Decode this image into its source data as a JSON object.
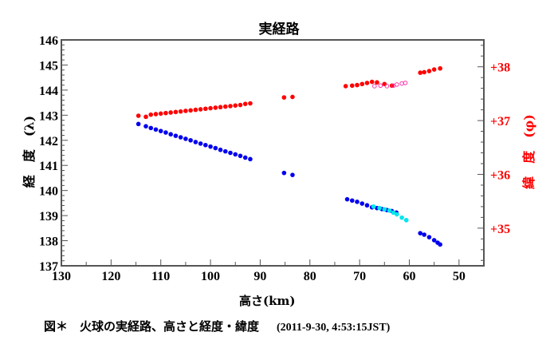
{
  "chart_data": {
    "type": "scatter",
    "title": "実経路",
    "xlabel": "高さ(km)",
    "ylabel_left": "経　度　(λ)",
    "ylabel_right": "緯　度　(φ)",
    "xlim": [
      130,
      45
    ],
    "ylim_left": [
      137,
      146
    ],
    "ylim_right": [
      34.3,
      38.5
    ],
    "x_ticks": [
      "130",
      "120",
      "110",
      "100",
      "90",
      "80",
      "70",
      "60",
      "50"
    ],
    "y_left_ticks": [
      "137",
      "138",
      "139",
      "140",
      "141",
      "142",
      "143",
      "144",
      "145",
      "146"
    ],
    "y_right_ticks": [
      "+35",
      "+36",
      "+37",
      "+38"
    ],
    "grid": false,
    "colors": {
      "longitude": "#0000ee",
      "longitude_alt": "#00e5ee",
      "latitude": "#ff0000",
      "latitude_alt": "#ff33aa",
      "right_axis": "#ff0000"
    },
    "series": [
      {
        "axis": "left",
        "color": "#0000ee",
        "marker": "filled",
        "points": [
          [
            114.5,
            142.65
          ],
          [
            113,
            142.56
          ],
          [
            112,
            142.49
          ],
          [
            111,
            142.43
          ],
          [
            110,
            142.37
          ],
          [
            109,
            142.31
          ],
          [
            108,
            142.24
          ],
          [
            107,
            142.18
          ],
          [
            106,
            142.12
          ],
          [
            105,
            142.06
          ],
          [
            104,
            142.0
          ],
          [
            103,
            141.93
          ],
          [
            102,
            141.87
          ],
          [
            101,
            141.81
          ],
          [
            100,
            141.75
          ],
          [
            99,
            141.69
          ],
          [
            98,
            141.62
          ],
          [
            97,
            141.56
          ],
          [
            96,
            141.5
          ],
          [
            95,
            141.44
          ],
          [
            94,
            141.38
          ],
          [
            93,
            141.31
          ],
          [
            92,
            141.25
          ],
          [
            85.2,
            140.7
          ],
          [
            83.5,
            140.62
          ],
          [
            72.5,
            139.65
          ],
          [
            71.5,
            139.6
          ],
          [
            70.5,
            139.55
          ],
          [
            69.5,
            139.48
          ],
          [
            68.5,
            139.41
          ],
          [
            67.5,
            139.33
          ],
          [
            66.5,
            139.3
          ],
          [
            65.5,
            139.26
          ],
          [
            64.5,
            139.22
          ],
          [
            63.5,
            139.18
          ],
          [
            62.6,
            139.12
          ],
          [
            57.8,
            138.3
          ],
          [
            57,
            138.24
          ],
          [
            56,
            138.14
          ],
          [
            55,
            138.02
          ],
          [
            54.3,
            137.92
          ],
          [
            53.8,
            137.85
          ]
        ]
      },
      {
        "axis": "left",
        "color": "#00e5ee",
        "marker": "filled",
        "points": [
          [
            67.2,
            139.36
          ],
          [
            66,
            139.3
          ],
          [
            65,
            139.25
          ],
          [
            64,
            139.2
          ],
          [
            63.2,
            139.12
          ],
          [
            62.5,
            139.05
          ],
          [
            61.5,
            138.92
          ],
          [
            60.6,
            138.82
          ]
        ]
      },
      {
        "axis": "right",
        "color": "#ff0000",
        "marker": "filled",
        "points": [
          [
            114.5,
            37.09
          ],
          [
            113,
            37.07
          ],
          [
            112,
            37.11
          ],
          [
            111,
            37.12
          ],
          [
            110,
            37.13
          ],
          [
            109,
            37.14
          ],
          [
            108,
            37.15
          ],
          [
            107,
            37.16
          ],
          [
            106,
            37.17
          ],
          [
            105,
            37.18
          ],
          [
            104,
            37.19
          ],
          [
            103,
            37.2
          ],
          [
            102,
            37.21
          ],
          [
            101,
            37.22
          ],
          [
            100,
            37.23
          ],
          [
            99,
            37.24
          ],
          [
            98,
            37.25
          ],
          [
            97,
            37.26
          ],
          [
            96,
            37.27
          ],
          [
            95,
            37.28
          ],
          [
            94,
            37.29
          ],
          [
            93,
            37.31
          ],
          [
            92,
            37.32
          ],
          [
            85.2,
            37.43
          ],
          [
            83.5,
            37.44
          ],
          [
            72.8,
            37.64
          ],
          [
            71.5,
            37.65
          ],
          [
            70.5,
            37.66
          ],
          [
            69.5,
            37.68
          ],
          [
            68.5,
            37.7
          ],
          [
            67.5,
            37.72
          ],
          [
            66.5,
            37.71
          ],
          [
            65,
            37.68
          ],
          [
            63.5,
            37.65
          ],
          [
            57.8,
            37.89
          ],
          [
            57,
            37.9
          ],
          [
            56,
            37.92
          ],
          [
            55,
            37.95
          ],
          [
            53.8,
            37.97
          ]
        ]
      },
      {
        "axis": "right",
        "color": "#ff33aa",
        "marker": "open",
        "points": [
          [
            67,
            37.64
          ],
          [
            65.8,
            37.65
          ],
          [
            64.5,
            37.64
          ],
          [
            63.2,
            37.65
          ],
          [
            62.5,
            37.67
          ],
          [
            61.5,
            37.69
          ],
          [
            60.8,
            37.7
          ]
        ]
      }
    ]
  },
  "caption": {
    "text": "図＊　火球の実経路、高さと経度・緯度",
    "stamp": "(2011-9-30, 4:53:15JST)"
  }
}
